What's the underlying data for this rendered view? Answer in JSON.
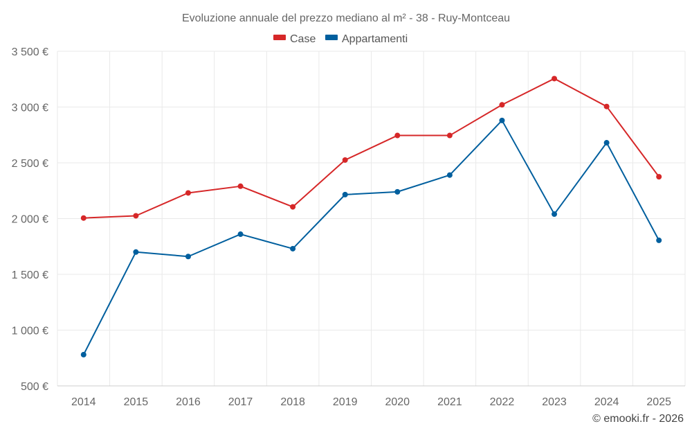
{
  "chart_data": {
    "type": "line",
    "title": "Evoluzione annuale del prezzo mediano al m² - 38 - Ruy-Montceau",
    "categories": [
      "2014",
      "2015",
      "2016",
      "2017",
      "2018",
      "2019",
      "2020",
      "2021",
      "2022",
      "2023",
      "2024",
      "2025"
    ],
    "y_ticks": [
      500,
      1000,
      1500,
      2000,
      2500,
      3000,
      3500
    ],
    "y_tick_labels": [
      "500 €",
      "1 000 €",
      "1 500 €",
      "2 000 €",
      "2 500 €",
      "3 000 €",
      "3 500 €"
    ],
    "ylim": [
      500,
      3500
    ],
    "grid": true,
    "legend_position": "top-center",
    "series": [
      {
        "name": "Case",
        "color": "#d62728",
        "values": [
          2005,
          2025,
          2230,
          2290,
          2105,
          2525,
          2745,
          2745,
          3020,
          3255,
          3005,
          2375
        ]
      },
      {
        "name": "Appartamenti",
        "color": "#005f9e",
        "values": [
          780,
          1700,
          1660,
          1860,
          1730,
          2215,
          2240,
          2390,
          2880,
          2040,
          2680,
          1805
        ]
      }
    ],
    "credit": "© emooki.fr - 2026"
  }
}
